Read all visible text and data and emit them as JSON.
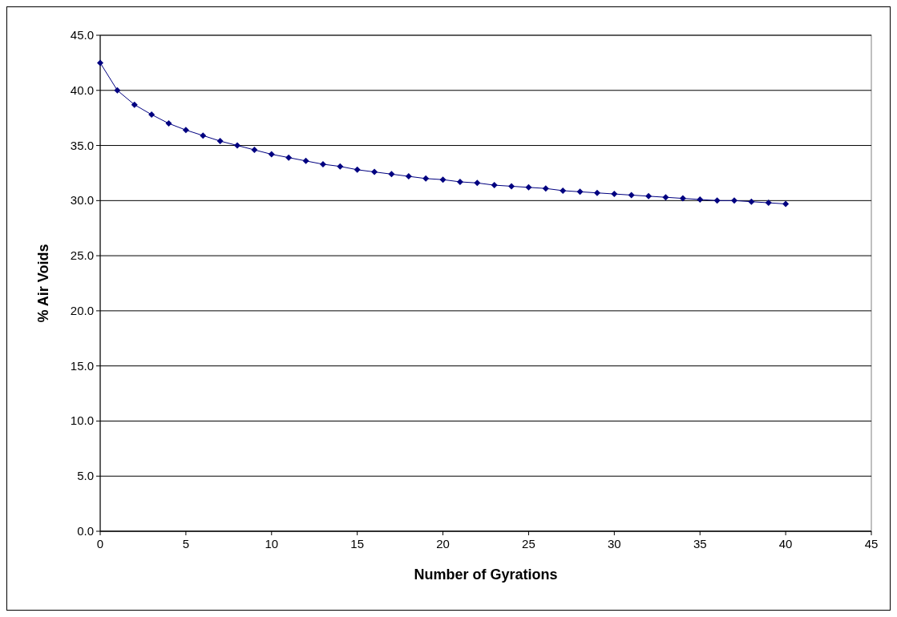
{
  "chart_data": {
    "type": "line",
    "xlabel": "Number of Gyrations",
    "ylabel": "% Air Voids",
    "x": [
      0,
      1,
      2,
      3,
      4,
      5,
      6,
      7,
      8,
      9,
      10,
      11,
      12,
      13,
      14,
      15,
      16,
      17,
      18,
      19,
      20,
      21,
      22,
      23,
      24,
      25,
      26,
      27,
      28,
      29,
      30,
      31,
      32,
      33,
      34,
      35,
      36,
      37,
      38,
      39,
      40
    ],
    "series": [
      {
        "color": "#000080",
        "values": [
          42.5,
          40.0,
          38.7,
          37.8,
          37.0,
          36.4,
          35.9,
          35.4,
          35.0,
          34.6,
          34.2,
          33.9,
          33.6,
          33.3,
          33.1,
          32.8,
          32.6,
          32.4,
          32.2,
          32.0,
          31.9,
          31.7,
          31.6,
          31.4,
          31.3,
          31.2,
          31.1,
          30.9,
          30.8,
          30.7,
          30.6,
          30.5,
          30.4,
          30.3,
          30.2,
          30.1,
          30.0,
          30.0,
          29.9,
          29.8,
          29.7
        ]
      }
    ],
    "xlim": [
      0,
      45
    ],
    "xticks": [
      0,
      5,
      10,
      15,
      20,
      25,
      30,
      35,
      40,
      45
    ],
    "ylim": [
      0,
      45
    ],
    "yticks": [
      {
        "value": 0,
        "label": "0.0"
      },
      {
        "value": 5,
        "label": "5.0"
      },
      {
        "value": 10,
        "label": "10.0"
      },
      {
        "value": 15,
        "label": "15.0"
      },
      {
        "value": 20,
        "label": "20.0"
      },
      {
        "value": 25,
        "label": "25.0"
      },
      {
        "value": 30,
        "label": "30.0"
      },
      {
        "value": 35,
        "label": "35.0"
      },
      {
        "value": 40,
        "label": "40.0"
      },
      {
        "value": 45,
        "label": "45.0"
      }
    ],
    "grid": "y",
    "marker": "diamond",
    "line_style": "solid"
  }
}
